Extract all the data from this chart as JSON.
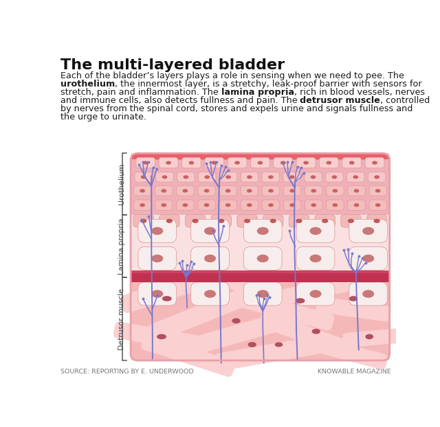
{
  "title": "The multi-layered bladder",
  "source_left": "SOURCE: REPORTING BY E. UNDERWOOD",
  "source_right": "KNOWABLE MAGAZINE",
  "bg_color": "#ffffff",
  "nerve_color": "#7777cc",
  "uro_top_color": "#e8606a",
  "uro_bg_color": "#f0b0b8",
  "uro_cell_bg": "#f7cece",
  "uro_cell_border": "#dda0a0",
  "uro_nucleus_color": "#c86060",
  "lam_bg_color": "#fae0e0",
  "lam_cell_bg": "#f5e8e8",
  "lam_cell_border": "#ddb0b0",
  "lam_nucleus_color": "#c87878",
  "vessel_color": "#c03050",
  "vessel_top_color": "#d04060",
  "det_bg_color": "#f5b8b8",
  "det_fiber_bg": "#fad0d0",
  "det_fiber_color": "#f0a8a8",
  "det_nucleus_color": "#b05060",
  "diag_border_color": "#e8a0a8",
  "bracket_color": "#555555",
  "label_color": "#444444"
}
